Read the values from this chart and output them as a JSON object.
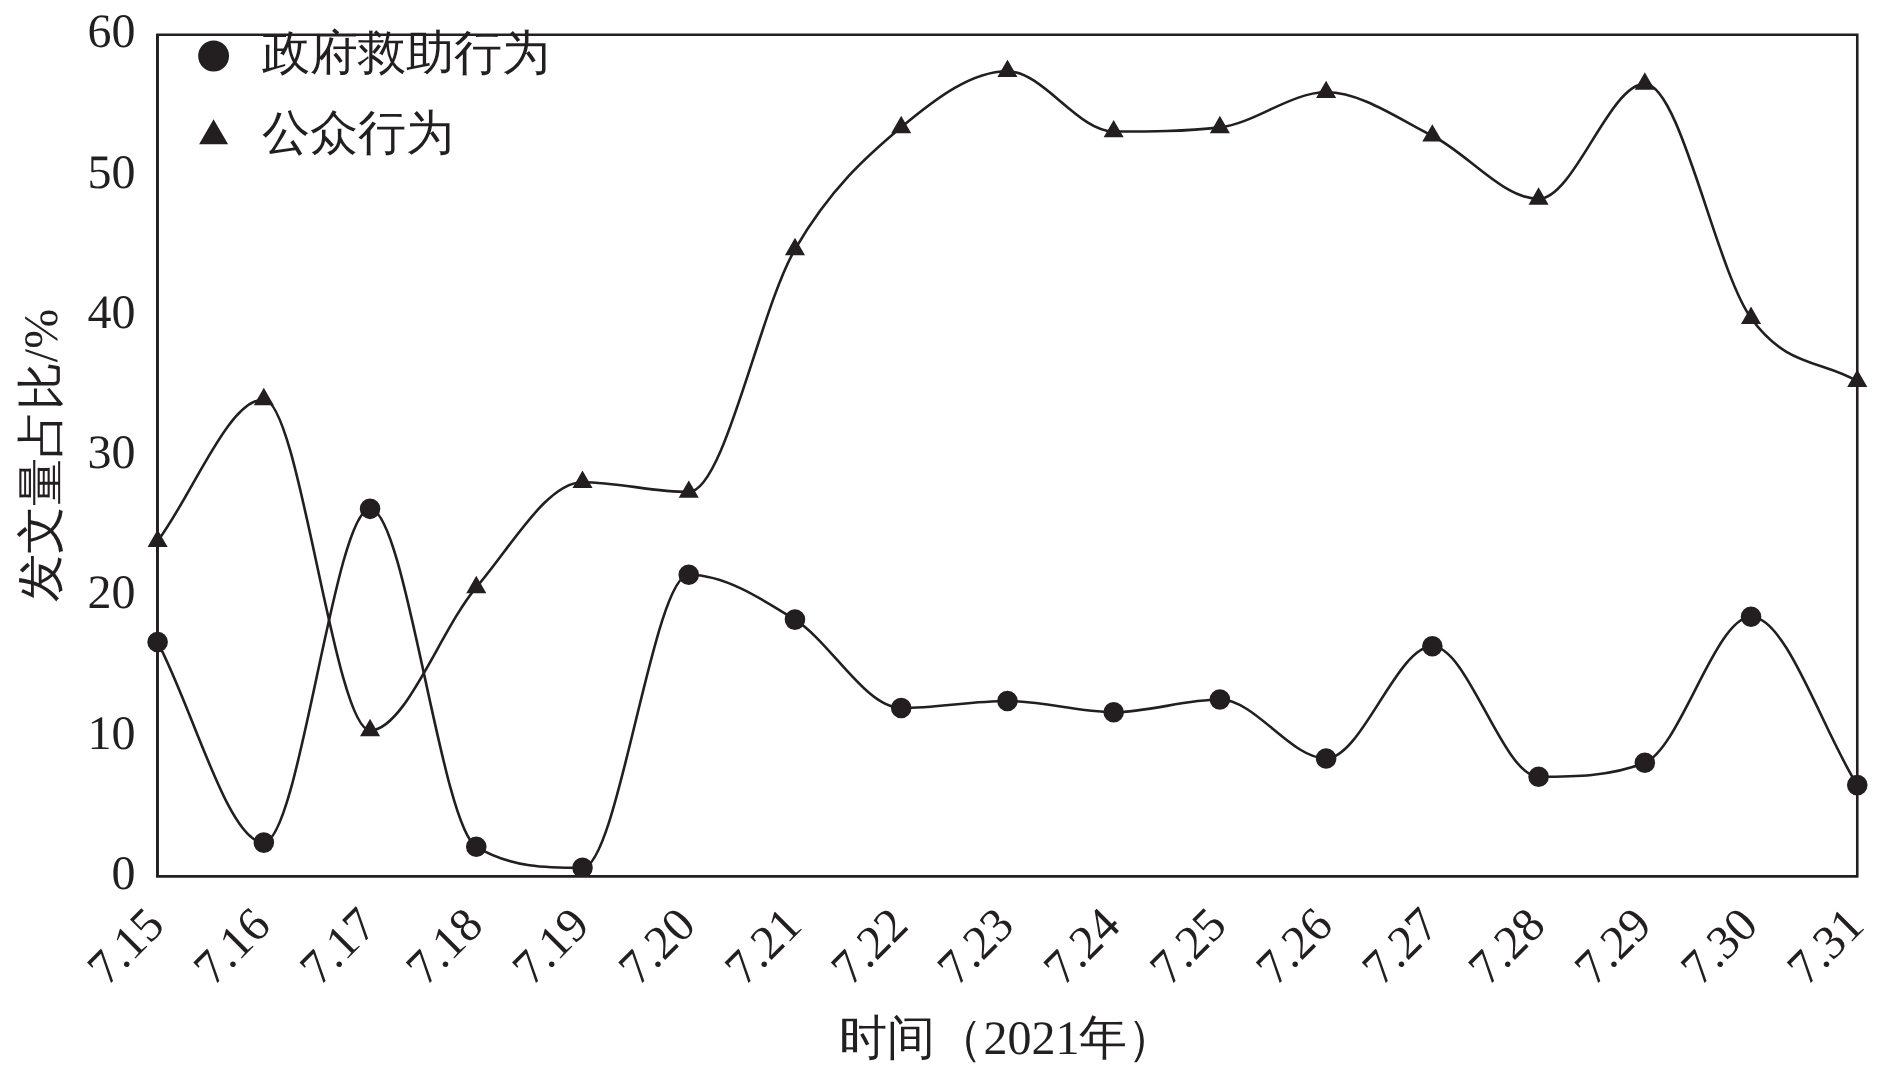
{
  "chart_data": {
    "type": "line",
    "xlabel": "时间（2021年）",
    "ylabel": "发文量占比/%",
    "categories": [
      "7.15",
      "7.16",
      "7.17",
      "7.18",
      "7.19",
      "7.20",
      "7.21",
      "7.22",
      "7.23",
      "7.24",
      "7.25",
      "7.26",
      "7.27",
      "7.28",
      "7.29",
      "7.30",
      "7.31"
    ],
    "series": [
      {
        "name": "政府救助行为",
        "color": "#231f20",
        "marker": "circle",
        "values": [
          16.7,
          2.4,
          26.2,
          2.1,
          0.6,
          21.5,
          18.3,
          12.0,
          12.5,
          11.7,
          12.6,
          8.4,
          16.4,
          7.1,
          8.1,
          18.5,
          6.5
        ]
      },
      {
        "name": "公众行为",
        "color": "#231f20",
        "marker": "triangle",
        "values": [
          23.9,
          34.0,
          10.4,
          20.6,
          28.1,
          27.4,
          44.7,
          53.4,
          57.4,
          53.1,
          53.4,
          55.9,
          52.8,
          48.3,
          56.5,
          39.8,
          35.3
        ]
      }
    ],
    "ylim": [
      0,
      60
    ],
    "yticks": [
      0,
      10,
      20,
      30,
      40,
      50,
      60
    ],
    "grid": false,
    "legend": "top left"
  }
}
